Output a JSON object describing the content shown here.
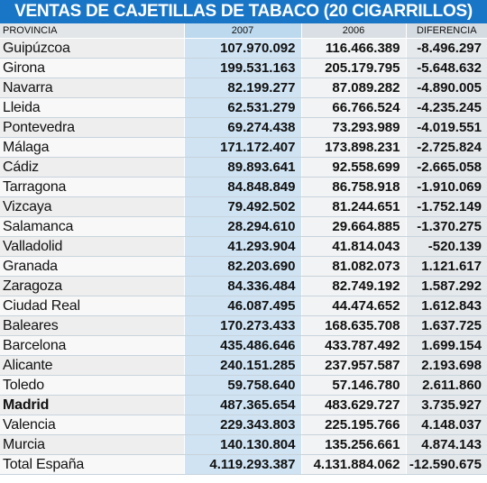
{
  "chart_data": {
    "type": "table",
    "title": "VENTAS DE CAJETILLAS DE TABACO (20 CIGARRILLOS)",
    "columns": [
      "PROVINCIA",
      "2007",
      "2006",
      "DIFERENCIA"
    ],
    "rows": [
      {
        "provincia": "Guipúzcoa",
        "v2007": "107.970.092",
        "v2006": "116.466.389",
        "diferencia": "-8.496.297",
        "bold": false
      },
      {
        "provincia": "Girona",
        "v2007": "199.531.163",
        "v2006": "205.179.795",
        "diferencia": "-5.648.632",
        "bold": false
      },
      {
        "provincia": "Navarra",
        "v2007": "82.199.277",
        "v2006": "87.089.282",
        "diferencia": "-4.890.005",
        "bold": false
      },
      {
        "provincia": "Lleida",
        "v2007": "62.531.279",
        "v2006": "66.766.524",
        "diferencia": "-4.235.245",
        "bold": false
      },
      {
        "provincia": "Pontevedra",
        "v2007": "69.274.438",
        "v2006": "73.293.989",
        "diferencia": "-4.019.551",
        "bold": false
      },
      {
        "provincia": "Málaga",
        "v2007": "171.172.407",
        "v2006": "173.898.231",
        "diferencia": "-2.725.824",
        "bold": false
      },
      {
        "provincia": "Cádiz",
        "v2007": "89.893.641",
        "v2006": "92.558.699",
        "diferencia": "-2.665.058",
        "bold": false
      },
      {
        "provincia": "Tarragona",
        "v2007": "84.848.849",
        "v2006": "86.758.918",
        "diferencia": "-1.910.069",
        "bold": false
      },
      {
        "provincia": "Vizcaya",
        "v2007": "79.492.502",
        "v2006": "81.244.651",
        "diferencia": "-1.752.149",
        "bold": false
      },
      {
        "provincia": "Salamanca",
        "v2007": "28.294.610",
        "v2006": "29.664.885",
        "diferencia": "-1.370.275",
        "bold": false
      },
      {
        "provincia": "Valladolid",
        "v2007": "41.293.904",
        "v2006": "41.814.043",
        "diferencia": "-520.139",
        "bold": false
      },
      {
        "provincia": "Granada",
        "v2007": "82.203.690",
        "v2006": "81.082.073",
        "diferencia": "1.121.617",
        "bold": false
      },
      {
        "provincia": "Zaragoza",
        "v2007": "84.336.484",
        "v2006": "82.749.192",
        "diferencia": "1.587.292",
        "bold": false
      },
      {
        "provincia": "Ciudad Real",
        "v2007": "46.087.495",
        "v2006": "44.474.652",
        "diferencia": "1.612.843",
        "bold": false
      },
      {
        "provincia": "Baleares",
        "v2007": "170.273.433",
        "v2006": "168.635.708",
        "diferencia": "1.637.725",
        "bold": false
      },
      {
        "provincia": "Barcelona",
        "v2007": "435.486.646",
        "v2006": "433.787.492",
        "diferencia": "1.699.154",
        "bold": false
      },
      {
        "provincia": "Alicante",
        "v2007": "240.151.285",
        "v2006": "237.957.587",
        "diferencia": "2.193.698",
        "bold": false
      },
      {
        "provincia": "Toledo",
        "v2007": "59.758.640",
        "v2006": "57.146.780",
        "diferencia": "2.611.860",
        "bold": false
      },
      {
        "provincia": "Madrid",
        "v2007": "487.365.654",
        "v2006": "483.629.727",
        "diferencia": "3.735.927",
        "bold": true
      },
      {
        "provincia": "Valencia",
        "v2007": "229.343.803",
        "v2006": "225.195.766",
        "diferencia": "4.148.037",
        "bold": false
      },
      {
        "provincia": "Murcia",
        "v2007": "140.130.804",
        "v2006": "135.256.661",
        "diferencia": "4.874.143",
        "bold": false
      },
      {
        "provincia": "Total España",
        "v2007": "4.119.293.387",
        "v2006": "4.131.884.062",
        "diferencia": "-12.590.675",
        "bold": false
      }
    ]
  },
  "colors": {
    "title_bg": "#1976c7",
    "title_text": "#ffffff",
    "col_2007_bg": "#cfe3f3"
  }
}
